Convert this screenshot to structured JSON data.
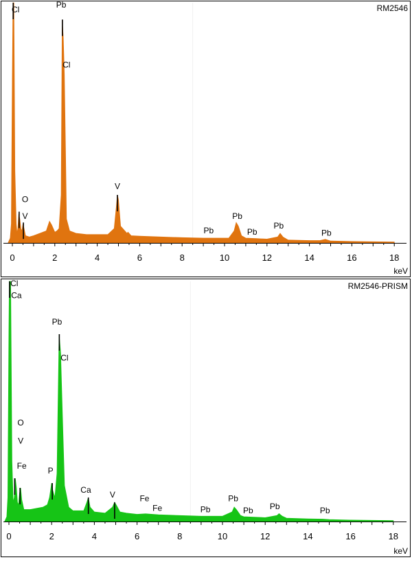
{
  "chart_data": [
    {
      "type": "area",
      "title": "RM2546",
      "xlabel": "keV",
      "ylabel": "",
      "xlim": [
        -0.2,
        18.5
      ],
      "ylim": [
        0,
        100
      ],
      "x_ticks": [
        "0",
        "2",
        "4",
        "6",
        "8",
        "10",
        "12",
        "14",
        "16",
        "18"
      ],
      "x_tick_values": [
        0,
        2,
        4,
        6,
        8,
        10,
        12,
        14,
        16,
        18
      ],
      "fill_color": "#e0740f",
      "peak_color": "#000000",
      "spectrum": [
        [
          -0.2,
          0
        ],
        [
          -0.1,
          2
        ],
        [
          -0.05,
          8
        ],
        [
          0.0,
          70
        ],
        [
          0.03,
          100
        ],
        [
          0.07,
          100
        ],
        [
          0.12,
          30
        ],
        [
          0.18,
          8
        ],
        [
          0.22,
          4
        ],
        [
          0.26,
          6
        ],
        [
          0.3,
          12
        ],
        [
          0.35,
          10
        ],
        [
          0.4,
          6
        ],
        [
          0.45,
          5
        ],
        [
          0.5,
          8
        ],
        [
          0.55,
          6
        ],
        [
          0.62,
          3
        ],
        [
          0.8,
          2.5
        ],
        [
          1.0,
          3
        ],
        [
          1.3,
          4
        ],
        [
          1.6,
          5
        ],
        [
          1.75,
          9
        ],
        [
          1.85,
          7.5
        ],
        [
          2.0,
          4.5
        ],
        [
          2.1,
          5
        ],
        [
          2.2,
          6
        ],
        [
          2.3,
          20
        ],
        [
          2.35,
          93
        ],
        [
          2.4,
          85
        ],
        [
          2.45,
          70
        ],
        [
          2.5,
          40
        ],
        [
          2.55,
          10
        ],
        [
          2.7,
          5
        ],
        [
          3.0,
          4
        ],
        [
          3.5,
          3.5
        ],
        [
          4.0,
          3.5
        ],
        [
          4.5,
          3.5
        ],
        [
          4.8,
          6
        ],
        [
          4.9,
          15
        ],
        [
          4.95,
          20
        ],
        [
          5.0,
          18
        ],
        [
          5.1,
          7
        ],
        [
          5.4,
          4
        ],
        [
          5.45,
          4.5
        ],
        [
          5.6,
          3
        ],
        [
          6.0,
          2.8
        ],
        [
          7.0,
          2.5
        ],
        [
          8.0,
          2.2
        ],
        [
          9.0,
          2
        ],
        [
          9.5,
          2
        ],
        [
          10.2,
          2
        ],
        [
          10.45,
          5
        ],
        [
          10.55,
          8.5
        ],
        [
          10.65,
          7
        ],
        [
          10.8,
          3
        ],
        [
          11.0,
          2
        ],
        [
          11.5,
          1.8
        ],
        [
          12.0,
          1.6
        ],
        [
          12.5,
          2.5
        ],
        [
          12.62,
          4
        ],
        [
          12.75,
          2.5
        ],
        [
          13.0,
          1.2
        ],
        [
          14.0,
          1
        ],
        [
          14.5,
          1
        ],
        [
          14.75,
          1.5
        ],
        [
          15.0,
          0.8
        ],
        [
          16.0,
          0.6
        ],
        [
          17.0,
          0.5
        ],
        [
          18.0,
          0.4
        ]
      ],
      "peak_lines": [
        {
          "x": 0.04,
          "y": 100
        },
        {
          "x": 2.36,
          "y": 93
        },
        {
          "x": 0.32,
          "y": 13
        },
        {
          "x": 0.52,
          "y": 8.5
        },
        {
          "x": 4.95,
          "y": 20
        }
      ],
      "annotations": [
        {
          "label": "Cl",
          "x": 0.15,
          "y": 96
        },
        {
          "label": "Pb",
          "x": 2.3,
          "y": 98
        },
        {
          "label": "Cl",
          "x": 2.55,
          "y": 73
        },
        {
          "label": "O",
          "x": 0.6,
          "y": 17
        },
        {
          "label": "V",
          "x": 0.6,
          "y": 10
        },
        {
          "label": "V",
          "x": 4.95,
          "y": 22.5
        },
        {
          "label": "Pb",
          "x": 9.25,
          "y": 4
        },
        {
          "label": "Pb",
          "x": 10.6,
          "y": 10
        },
        {
          "label": "Pb",
          "x": 11.3,
          "y": 3.5
        },
        {
          "label": "Pb",
          "x": 12.55,
          "y": 6
        },
        {
          "label": "Pb",
          "x": 14.8,
          "y": 3
        }
      ]
    },
    {
      "type": "area",
      "title": "RM2546-PRISM",
      "xlabel": "keV",
      "ylabel": "",
      "xlim": [
        -0.2,
        18.5
      ],
      "ylim": [
        0,
        100
      ],
      "x_ticks": [
        "0",
        "2",
        "4",
        "6",
        "8",
        "10",
        "12",
        "14",
        "16",
        "18"
      ],
      "x_tick_values": [
        0,
        2,
        4,
        6,
        8,
        10,
        12,
        14,
        16,
        18
      ],
      "fill_color": "#16c416",
      "peak_color": "#000000",
      "spectrum": [
        [
          -0.2,
          0
        ],
        [
          -0.1,
          2
        ],
        [
          -0.05,
          10
        ],
        [
          0.0,
          80
        ],
        [
          0.02,
          100
        ],
        [
          0.08,
          100
        ],
        [
          0.14,
          25
        ],
        [
          0.2,
          8
        ],
        [
          0.25,
          10
        ],
        [
          0.3,
          18
        ],
        [
          0.35,
          14
        ],
        [
          0.4,
          8
        ],
        [
          0.45,
          7
        ],
        [
          0.5,
          12
        ],
        [
          0.55,
          14
        ],
        [
          0.6,
          9
        ],
        [
          0.7,
          5
        ],
        [
          1.0,
          5
        ],
        [
          1.3,
          5.5
        ],
        [
          1.6,
          6
        ],
        [
          1.8,
          7
        ],
        [
          1.9,
          10
        ],
        [
          2.0,
          16
        ],
        [
          2.05,
          13
        ],
        [
          2.15,
          10
        ],
        [
          2.25,
          20
        ],
        [
          2.35,
          78
        ],
        [
          2.42,
          70
        ],
        [
          2.5,
          45
        ],
        [
          2.6,
          15
        ],
        [
          2.8,
          6
        ],
        [
          3.0,
          4.5
        ],
        [
          3.5,
          4.5
        ],
        [
          3.65,
          8
        ],
        [
          3.72,
          10
        ],
        [
          3.8,
          6
        ],
        [
          4.0,
          4
        ],
        [
          4.5,
          3.5
        ],
        [
          4.85,
          6
        ],
        [
          4.95,
          8
        ],
        [
          5.05,
          6.5
        ],
        [
          5.2,
          4
        ],
        [
          5.5,
          3.5
        ],
        [
          6.0,
          3
        ],
        [
          6.4,
          3.2
        ],
        [
          7.0,
          2.8
        ],
        [
          8.0,
          2.5
        ],
        [
          9.0,
          2.2
        ],
        [
          10.0,
          2.2
        ],
        [
          10.45,
          4
        ],
        [
          10.55,
          6
        ],
        [
          10.65,
          5
        ],
        [
          10.85,
          2.5
        ],
        [
          11.0,
          2
        ],
        [
          12.0,
          1.6
        ],
        [
          12.55,
          2.5
        ],
        [
          12.65,
          3.3
        ],
        [
          12.8,
          2.2
        ],
        [
          13.0,
          1.4
        ],
        [
          14.0,
          1.1
        ],
        [
          14.7,
          1
        ],
        [
          15.0,
          0.8
        ],
        [
          16.0,
          0.6
        ],
        [
          17.0,
          0.5
        ],
        [
          18.0,
          0.4
        ]
      ],
      "peak_lines": [
        {
          "x": 0.03,
          "y": 100
        },
        {
          "x": 2.36,
          "y": 78
        },
        {
          "x": 0.27,
          "y": 18
        },
        {
          "x": 0.52,
          "y": 14
        },
        {
          "x": 2.03,
          "y": 16
        },
        {
          "x": 3.72,
          "y": 10
        },
        {
          "x": 4.95,
          "y": 8
        }
      ],
      "annotations": [
        {
          "label": "Cl",
          "x": 0.25,
          "y": 98
        },
        {
          "label": "Ca",
          "x": 0.35,
          "y": 93
        },
        {
          "label": "Pb",
          "x": 2.25,
          "y": 82
        },
        {
          "label": "Cl",
          "x": 2.6,
          "y": 67
        },
        {
          "label": "O",
          "x": 0.55,
          "y": 40
        },
        {
          "label": "V",
          "x": 0.55,
          "y": 32.5
        },
        {
          "label": "Fe",
          "x": 0.6,
          "y": 22
        },
        {
          "label": "P",
          "x": 1.95,
          "y": 20
        },
        {
          "label": "Ca",
          "x": 3.6,
          "y": 12
        },
        {
          "label": "V",
          "x": 4.85,
          "y": 10
        },
        {
          "label": "Fe",
          "x": 6.35,
          "y": 8.5
        },
        {
          "label": "Fe",
          "x": 6.95,
          "y": 4.5
        },
        {
          "label": "Pb",
          "x": 9.2,
          "y": 3.8
        },
        {
          "label": "Pb",
          "x": 10.5,
          "y": 8.5
        },
        {
          "label": "Pb",
          "x": 11.2,
          "y": 3.5
        },
        {
          "label": "Pb",
          "x": 12.45,
          "y": 5.2
        },
        {
          "label": "Pb",
          "x": 14.8,
          "y": 3.5
        }
      ]
    }
  ]
}
